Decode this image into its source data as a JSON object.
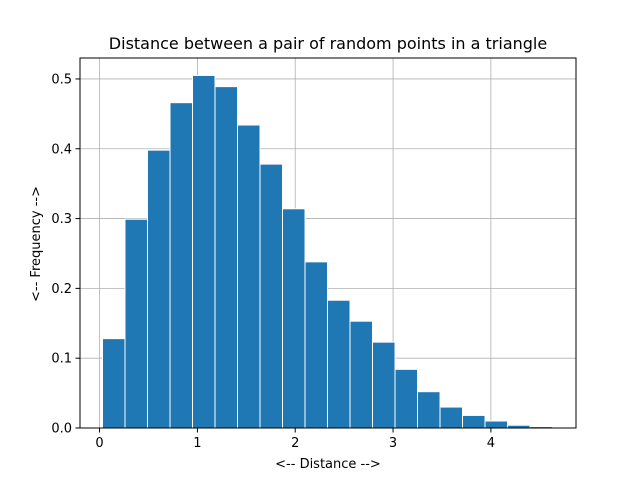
{
  "chart_data": {
    "type": "bar",
    "title": "Distance between a pair of random points in a triangle",
    "xlabel": "<-- Distance -->",
    "ylabel": "<-- Frequency -->",
    "xlim": [
      -0.2,
      4.87
    ],
    "ylim": [
      0,
      0.53
    ],
    "xticks": [
      0,
      1,
      2,
      3,
      4
    ],
    "yticks": [
      0.0,
      0.1,
      0.2,
      0.3,
      0.4,
      0.5
    ],
    "xtick_labels": [
      "0",
      "1",
      "2",
      "3",
      "4"
    ],
    "ytick_labels": [
      "0.0",
      "0.1",
      "0.2",
      "0.3",
      "0.4",
      "0.5"
    ],
    "grid": true,
    "bar_color": "#1f77b4",
    "bin_edges": [
      0.03,
      0.26,
      0.49,
      0.72,
      0.95,
      1.18,
      1.41,
      1.64,
      1.87,
      2.1,
      2.33,
      2.56,
      2.79,
      3.02,
      3.25,
      3.48,
      3.71,
      3.94,
      4.17,
      4.4,
      4.63
    ],
    "values": [
      0.128,
      0.299,
      0.398,
      0.466,
      0.505,
      0.489,
      0.434,
      0.378,
      0.314,
      0.238,
      0.183,
      0.153,
      0.123,
      0.084,
      0.052,
      0.03,
      0.018,
      0.01,
      0.004,
      0.002
    ]
  }
}
